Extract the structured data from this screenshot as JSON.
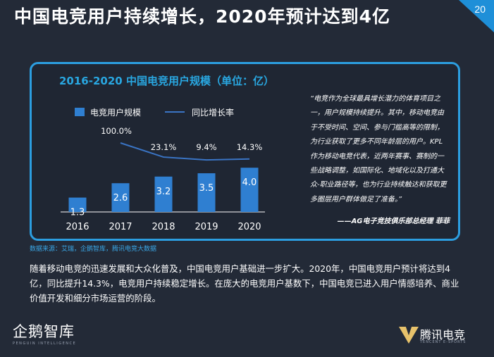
{
  "page": {
    "title": "中国电竞用户持续增长，2020年预计达到4亿",
    "page_number": "20"
  },
  "chart_data": {
    "type": "bar",
    "title": "2016-2020 中国电竞用户规模（单位：亿）",
    "categories": [
      "2016",
      "2017",
      "2018",
      "2019",
      "2020"
    ],
    "series": [
      {
        "name": "电竞用户规模",
        "type": "bar",
        "values": [
          1.3,
          2.6,
          3.2,
          3.5,
          4.0
        ],
        "labels": [
          "1.3",
          "2.6",
          "3.2",
          "3.5",
          "4.0"
        ]
      },
      {
        "name": "同比增长率",
        "type": "line",
        "values": [
          100.0,
          23.1,
          9.4,
          14.3
        ],
        "x": [
          "2017",
          "2018",
          "2019",
          "2020"
        ],
        "labels": [
          "100.0%",
          "23.1%",
          "9.4%",
          "14.3%"
        ]
      }
    ],
    "legend": "top-left",
    "grid": false,
    "colors": {
      "bar": "#2f7fd1",
      "line": "#3a74c4",
      "axis": "#ffffff"
    }
  },
  "quote": {
    "text": "“电竞作为全球最具增长潜力的体育项目之一，用户规模持续提升。其中，移动电竞由于不受时间、空间、参与门槛高等的限制，为行业获取了更多不同年龄层的用户。KPL作为移动电竞代表，近两年赛事、赛制的一些战略调整，如国际化、地域化以及打通大众-职业路径等，也为行业持续触达和获取更多圈层用户群体做足了准备。”",
    "author": "——AG电子竞技俱乐部总经理 菲菲"
  },
  "source": "数据来源：艾瑞，企鹅智库，腾讯电竞大数据",
  "body": "随着移动电竞的迅速发展和大众化普及，中国电竞用户基础进一步扩大。2020年，中国电竞用户预计将达到4亿，同比提升14.3%，电竞用户持续稳定增长。在庞大的电竞用户基数下，中国电竞已进入用户情感培养、商业价值开发和细分市场运营的阶段。",
  "footer": {
    "left_logo_cn": "企鹅智库",
    "left_logo_en": "PENGUIN INTELLIGENCE",
    "right_logo_cn": "腾讯电竞",
    "right_logo_en": "TENCENT E-SPORTS"
  },
  "colors": {
    "background": "#232a37",
    "accent": "#2c9ee0",
    "chart_title": "#29a7e1"
  }
}
